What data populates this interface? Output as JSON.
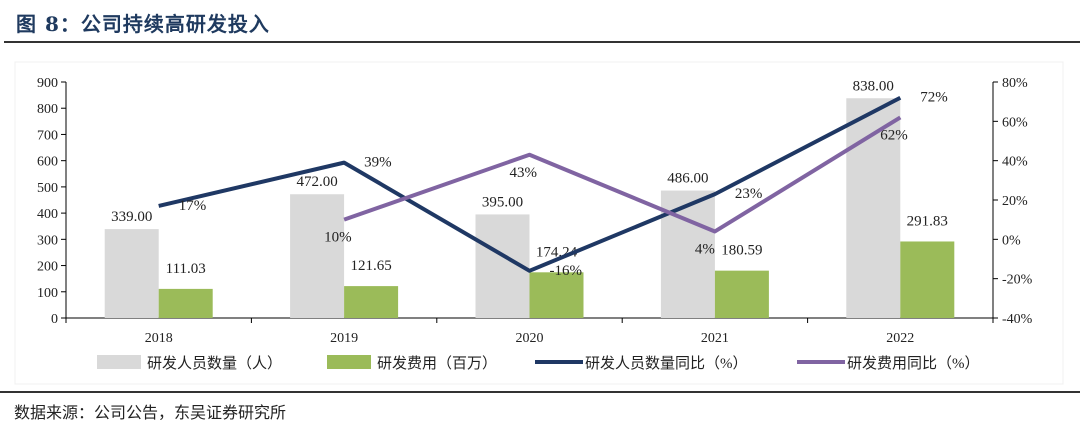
{
  "title": "图 8：公司持续高研发投入",
  "source": "数据来源：公司公告，东吴证券研究所",
  "colors": {
    "headcount_bar": "#d9d9d9",
    "expense_bar": "#9bbb59",
    "headcount_yoy": "#1f3864",
    "expense_yoy": "#8064a2"
  },
  "chart_data": {
    "type": "bar",
    "categories": [
      "2018",
      "2019",
      "2020",
      "2021",
      "2022"
    ],
    "y_left": {
      "ylim": [
        0,
        900
      ],
      "ticks": [
        0,
        100,
        200,
        300,
        400,
        500,
        600,
        700,
        800,
        900
      ]
    },
    "y_right": {
      "ylim": [
        -40,
        80
      ],
      "ticks": [
        "-40%",
        "-20%",
        "0%",
        "20%",
        "40%",
        "60%",
        "80%"
      ],
      "tick_values": [
        -40,
        -20,
        0,
        20,
        40,
        60,
        80
      ]
    },
    "series": [
      {
        "name": "研发人员数量（人）",
        "type": "bar",
        "axis": "left",
        "values": [
          339,
          472,
          395,
          486,
          838
        ],
        "labels": [
          "339.00",
          "472.00",
          "395.00",
          "486.00",
          "838.00"
        ]
      },
      {
        "name": "研发费用（百万）",
        "type": "bar",
        "axis": "left",
        "values": [
          111.03,
          121.65,
          174.24,
          180.59,
          291.83
        ],
        "labels": [
          "111.03",
          "121.65",
          "174.24",
          "180.59",
          "291.83"
        ]
      },
      {
        "name": "研发人员数量同比（%）",
        "type": "line",
        "axis": "right",
        "values": [
          17,
          39,
          -16,
          23,
          72
        ],
        "labels": [
          "17%",
          "39%",
          "-16%",
          "23%",
          "72%"
        ]
      },
      {
        "name": "研发费用同比（%）",
        "type": "line",
        "axis": "right",
        "values": [
          null,
          10,
          43,
          4,
          62
        ],
        "labels": [
          null,
          "10%",
          "43%",
          "4%",
          "62%"
        ]
      }
    ],
    "legend_position": "bottom",
    "grid": false
  }
}
